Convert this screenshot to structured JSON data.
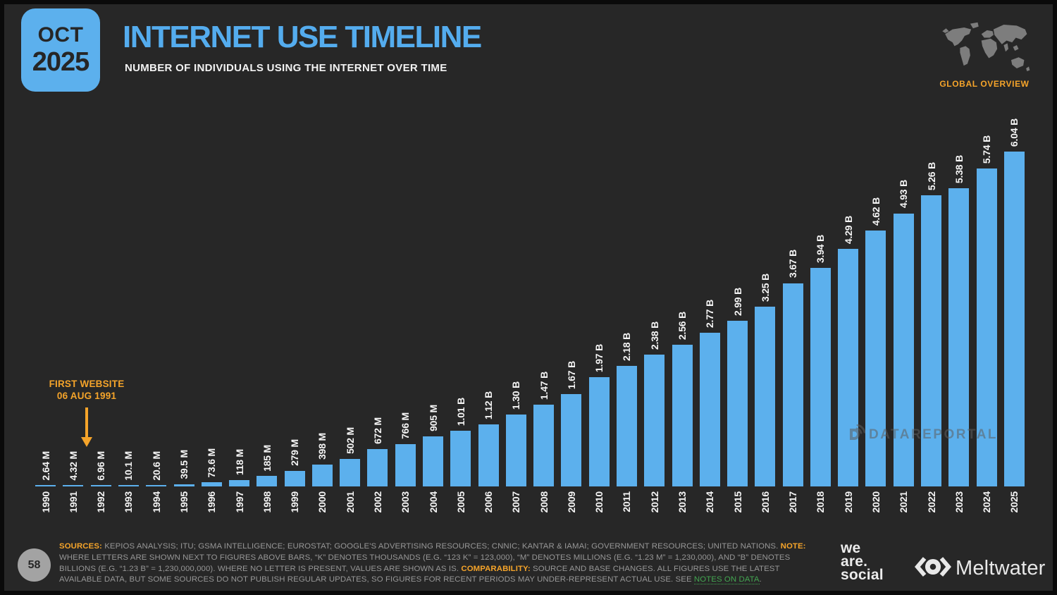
{
  "theme": {
    "background": "#272727",
    "frame": "#0a0a0a",
    "bar_blue": "#5CB0ED",
    "title_blue": "#54ACEE",
    "orange": "#F5A42A",
    "muted_gray": "#979797",
    "link_green": "#43A651",
    "map_gray": "#7D7D7D"
  },
  "header": {
    "badge_month": "OCT",
    "badge_year": "2025",
    "title": "INTERNET USE TIMELINE",
    "subtitle": "NUMBER OF INDIVIDUALS USING THE INTERNET OVER TIME",
    "region_label": "GLOBAL OVERVIEW",
    "map_icon": "world-map"
  },
  "annotation": {
    "line1": "FIRST WEBSITE",
    "line2": "06 AUG 1991",
    "arrow": "down-arrow",
    "points_to_year": "1991"
  },
  "watermark": {
    "icon": "datareportal-logo",
    "text": "DATAREPORTAL"
  },
  "chart_data": {
    "type": "bar",
    "title": "INTERNET USE TIMELINE",
    "subtitle": "NUMBER OF INDIVIDUALS USING THE INTERNET OVER TIME",
    "categories": [
      "1990",
      "1991",
      "1992",
      "1993",
      "1994",
      "1995",
      "1996",
      "1997",
      "1998",
      "1999",
      "2000",
      "2001",
      "2002",
      "2003",
      "2004",
      "2005",
      "2006",
      "2007",
      "2008",
      "2009",
      "2010",
      "2011",
      "2012",
      "2013",
      "2014",
      "2015",
      "2016",
      "2017",
      "2018",
      "2019",
      "2020",
      "2021",
      "2022",
      "2023",
      "2024",
      "2025"
    ],
    "value_labels": [
      "2.64 M",
      "4.32 M",
      "6.96 M",
      "10.1 M",
      "20.6 M",
      "39.5 M",
      "73.6 M",
      "118 M",
      "185 M",
      "279 M",
      "398 M",
      "502 M",
      "672 M",
      "766 M",
      "905 M",
      "1.01 B",
      "1.12 B",
      "1.30 B",
      "1.47 B",
      "1.67 B",
      "1.97 B",
      "2.18 B",
      "2.38 B",
      "2.56 B",
      "2.77 B",
      "2.99 B",
      "3.25 B",
      "3.67 B",
      "3.94 B",
      "4.29 B",
      "4.62 B",
      "4.93 B",
      "5.26 B",
      "5.38 B",
      "5.74 B",
      "6.04 B"
    ],
    "values_billions": [
      0.00264,
      0.00432,
      0.00696,
      0.0101,
      0.0206,
      0.0395,
      0.0736,
      0.118,
      0.185,
      0.279,
      0.398,
      0.502,
      0.672,
      0.766,
      0.905,
      1.01,
      1.12,
      1.3,
      1.47,
      1.67,
      1.97,
      2.18,
      2.38,
      2.56,
      2.77,
      2.99,
      3.25,
      3.67,
      3.94,
      4.29,
      4.62,
      4.93,
      5.26,
      5.38,
      5.74,
      6.04
    ],
    "bar_color": "#5CB0ED",
    "label_rotation": "vertical-bottom-to-top",
    "xlabel": "",
    "ylabel": "",
    "ylim": [
      0,
      6.04
    ],
    "grid": false,
    "legend": false
  },
  "footer": {
    "page_number": "58",
    "segments": [
      {
        "style": "label",
        "text": "SOURCES:"
      },
      {
        "style": "text",
        "text": " KEPIOS ANALYSIS; ITU; GSMA INTELLIGENCE; EUROSTAT; GOOGLE'S ADVERTISING RESOURCES; CNNIC; KANTAR & IAMAI; GOVERNMENT RESOURCES; UNITED NATIONS. "
      },
      {
        "style": "label",
        "text": "NOTE:"
      },
      {
        "style": "text",
        "text": " WHERE LETTERS ARE SHOWN NEXT TO FIGURES ABOVE BARS, “K” DENOTES THOUSANDS (E.G. “123 K” = 123,000), “M” DENOTES MILLIONS (E.G. “1.23 M” = 1,230,000), AND “B” DENOTES BILLIONS (E.G. “1.23 B” = 1,230,000,000). WHERE NO LETTER IS PRESENT, VALUES ARE SHOWN AS IS. "
      },
      {
        "style": "label",
        "text": "COMPARABILITY:"
      },
      {
        "style": "text",
        "text": " SOURCE AND BASE CHANGES. ALL FIGURES USE THE LATEST AVAILABLE DATA, BUT SOME SOURCES DO NOT PUBLISH REGULAR UPDATES, SO FIGURES FOR RECENT PERIODS MAY UNDER-REPRESENT ACTUAL USE. SEE "
      },
      {
        "style": "link",
        "text": "NOTES ON DATA"
      },
      {
        "style": "text",
        "text": "."
      }
    ],
    "we_are_social": {
      "line1": "we",
      "line2": "are.",
      "line3": "social"
    },
    "meltwater": {
      "name": "Meltwater",
      "icon": "meltwater-eye"
    }
  }
}
